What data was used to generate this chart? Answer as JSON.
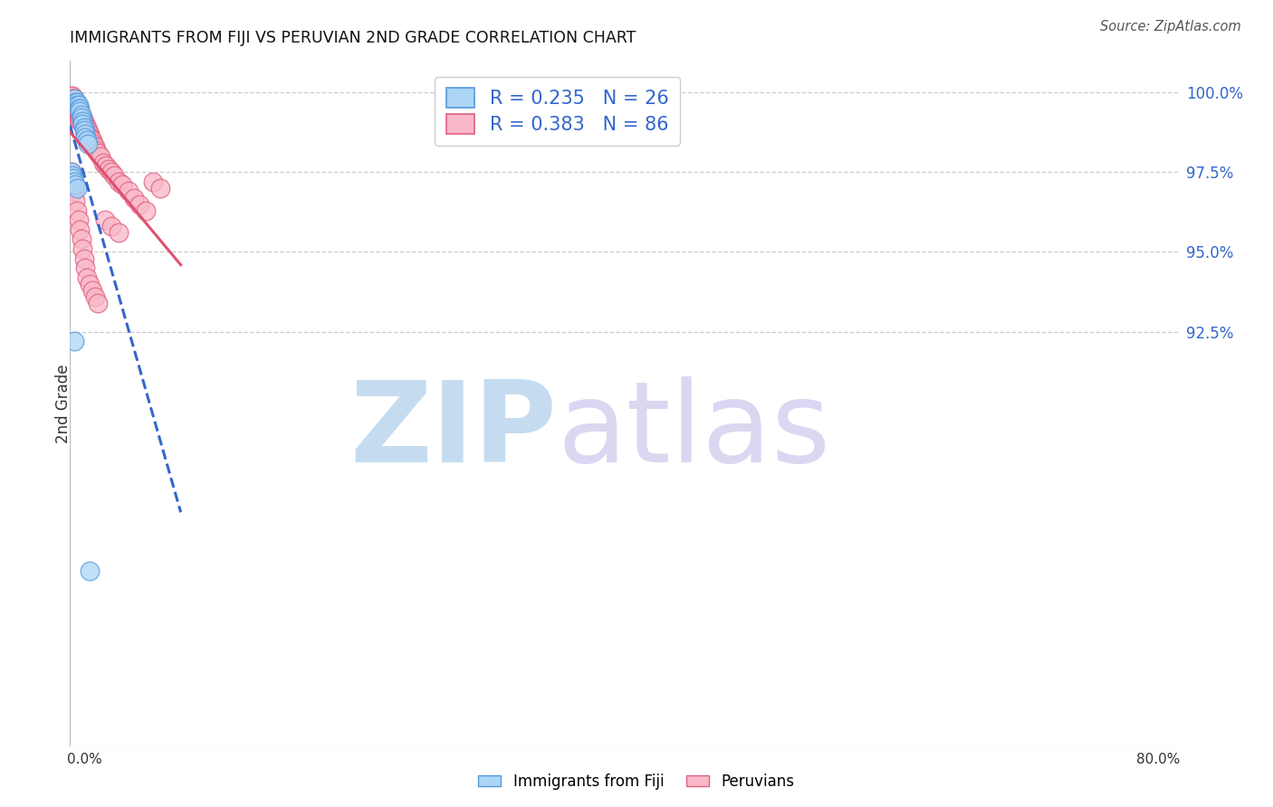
{
  "title": "IMMIGRANTS FROM FIJI VS PERUVIAN 2ND GRADE CORRELATION CHART",
  "source": "Source: ZipAtlas.com",
  "ylabel": "2nd Grade",
  "ytick_labels": [
    "92.5%",
    "95.0%",
    "97.5%",
    "100.0%"
  ],
  "ytick_values": [
    0.925,
    0.95,
    0.975,
    1.0
  ],
  "xlim": [
    0.0,
    0.8
  ],
  "ylim": [
    0.795,
    1.01
  ],
  "fiji_R": 0.235,
  "fiji_N": 26,
  "peru_R": 0.383,
  "peru_N": 86,
  "fiji_color": "#ADD5F5",
  "peru_color": "#F9B8C8",
  "fiji_edge_color": "#5599DD",
  "peru_edge_color": "#E06080",
  "fiji_line_color": "#3366CC",
  "peru_line_color": "#E05070",
  "background_color": "#FFFFFF",
  "grid_color": "#CCCCCC",
  "legend_fiji": "Immigrants from Fiji",
  "legend_peru": "Peruvians",
  "fiji_x": [
    0.003,
    0.004,
    0.005,
    0.005,
    0.006,
    0.006,
    0.007,
    0.007,
    0.008,
    0.008,
    0.009,
    0.009,
    0.01,
    0.01,
    0.011,
    0.011,
    0.012,
    0.013,
    0.001,
    0.002,
    0.002,
    0.003,
    0.004,
    0.005,
    0.003,
    0.014
  ],
  "fiji_y": [
    0.998,
    0.997,
    0.997,
    0.996,
    0.996,
    0.995,
    0.995,
    0.994,
    0.993,
    0.992,
    0.991,
    0.99,
    0.989,
    0.988,
    0.987,
    0.986,
    0.985,
    0.984,
    0.975,
    0.974,
    0.973,
    0.972,
    0.971,
    0.97,
    0.922,
    0.85
  ],
  "peru_x": [
    0.001,
    0.001,
    0.001,
    0.002,
    0.002,
    0.002,
    0.002,
    0.003,
    0.003,
    0.003,
    0.003,
    0.003,
    0.004,
    0.004,
    0.004,
    0.004,
    0.005,
    0.005,
    0.005,
    0.005,
    0.005,
    0.006,
    0.006,
    0.006,
    0.006,
    0.007,
    0.007,
    0.007,
    0.007,
    0.008,
    0.008,
    0.008,
    0.009,
    0.009,
    0.009,
    0.01,
    0.01,
    0.01,
    0.011,
    0.011,
    0.012,
    0.012,
    0.013,
    0.013,
    0.014,
    0.014,
    0.015,
    0.015,
    0.016,
    0.017,
    0.018,
    0.019,
    0.02,
    0.022,
    0.024,
    0.026,
    0.028,
    0.03,
    0.032,
    0.035,
    0.038,
    0.042,
    0.046,
    0.05,
    0.055,
    0.001,
    0.002,
    0.003,
    0.004,
    0.005,
    0.006,
    0.007,
    0.008,
    0.009,
    0.01,
    0.011,
    0.012,
    0.014,
    0.016,
    0.018,
    0.02,
    0.025,
    0.03,
    0.035,
    0.06,
    0.065
  ],
  "peru_y": [
    0.999,
    0.998,
    0.997,
    0.999,
    0.998,
    0.997,
    0.996,
    0.998,
    0.997,
    0.996,
    0.995,
    0.994,
    0.997,
    0.996,
    0.995,
    0.994,
    0.996,
    0.995,
    0.994,
    0.993,
    0.992,
    0.995,
    0.994,
    0.993,
    0.992,
    0.994,
    0.993,
    0.992,
    0.991,
    0.993,
    0.992,
    0.991,
    0.992,
    0.991,
    0.99,
    0.991,
    0.99,
    0.989,
    0.99,
    0.989,
    0.989,
    0.988,
    0.988,
    0.987,
    0.987,
    0.986,
    0.986,
    0.985,
    0.985,
    0.984,
    0.983,
    0.982,
    0.981,
    0.98,
    0.978,
    0.977,
    0.976,
    0.975,
    0.974,
    0.972,
    0.971,
    0.969,
    0.967,
    0.965,
    0.963,
    0.975,
    0.972,
    0.969,
    0.966,
    0.963,
    0.96,
    0.957,
    0.954,
    0.951,
    0.948,
    0.945,
    0.942,
    0.94,
    0.938,
    0.936,
    0.934,
    0.96,
    0.958,
    0.956,
    0.972,
    0.97
  ]
}
